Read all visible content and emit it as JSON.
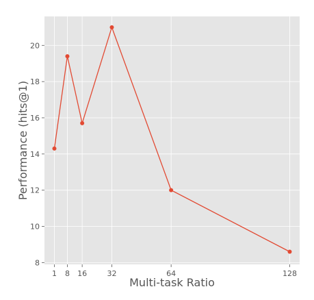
{
  "chart_data": {
    "type": "line",
    "title": "",
    "xlabel": "Multi-task Ratio",
    "ylabel": "Performance (hits@1)",
    "x": [
      1,
      8,
      16,
      32,
      64,
      128
    ],
    "xticks": [
      "1",
      "8",
      "16",
      "32",
      "64",
      "128"
    ],
    "yticks": [
      "8",
      "10",
      "12",
      "14",
      "16",
      "18",
      "20"
    ],
    "xlim": [
      -4.35,
      133.35
    ],
    "ylim": [
      7.9,
      21.6
    ],
    "grid": true,
    "legend": "none",
    "series": [
      {
        "values": [
          14.3,
          19.4,
          15.7,
          21.0,
          12.0,
          8.6
        ],
        "color": "#E24A33"
      }
    ],
    "colors": {
      "plot_background": "#E5E5E5",
      "grid": "#FFFFFF",
      "text": "#555555"
    }
  }
}
